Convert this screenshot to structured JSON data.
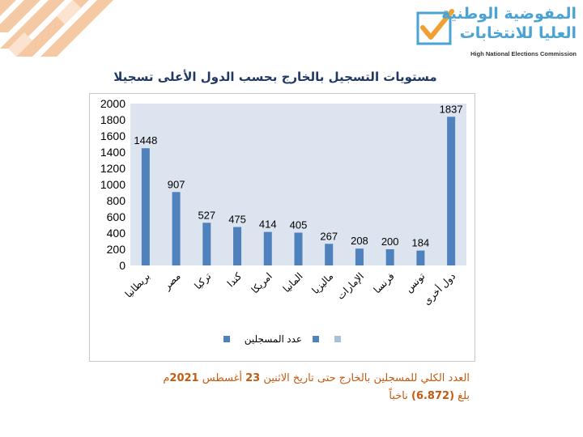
{
  "header": {
    "logo_line1": "المفوضية الوطنية",
    "logo_line2": "العليا للانتخابات",
    "logo_en": "High National Elections Commission",
    "accent_color": "#4aa3d4",
    "check_color": "#f0a030"
  },
  "chart_data": {
    "type": "bar",
    "title": "مستويات التسجيل بالخارج بحسب الدول الأعلى تسجيلا",
    "categories": [
      "بريطانيا",
      "مصر",
      "تركيا",
      "كندا",
      "امريكا",
      "المانيا",
      "ماليزيا",
      "الإمارات",
      "فرنسا",
      "تونس",
      "دول أخرى"
    ],
    "values": [
      1448,
      907,
      527,
      475,
      414,
      405,
      267,
      208,
      200,
      184,
      1837
    ],
    "ylim": [
      0,
      2000
    ],
    "yticks": [
      0,
      200,
      400,
      600,
      800,
      1000,
      1200,
      1400,
      1600,
      1800,
      2000
    ],
    "series": [
      {
        "name": "عدد المسجلين",
        "values": [
          1448,
          907,
          527,
          475,
          414,
          405,
          267,
          208,
          200,
          184,
          1837
        ]
      }
    ],
    "bar_color": "#4f81bd",
    "plot_background": "#dbe4ef",
    "grid": false,
    "legend_position": "bottom"
  },
  "footer": {
    "line1_text": "العدد الكلي للمسجلين بالخارج حتى تاريخ الاثنين ",
    "line1_day": "23",
    "line1_month": " أغسطس ",
    "line1_year": "2021",
    "line1_suffix": "م",
    "line2_prefix": "بلغ ",
    "line2_value": "(6.872)",
    "line2_suffix": " ناخباً",
    "color": "#c55a11"
  }
}
